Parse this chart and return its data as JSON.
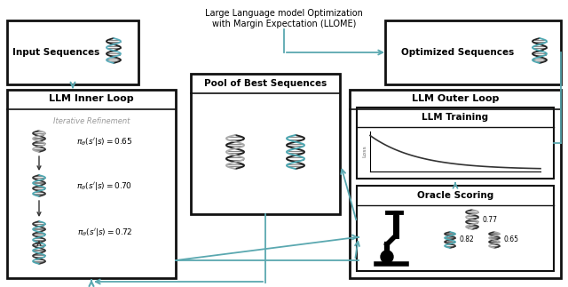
{
  "title_line1": "Large Language model Optimization",
  "title_line2": "with Margin Expectation (LLOME)",
  "bg_color": "#ffffff",
  "border_color": "#111111",
  "arrow_color": "#5aa8b0",
  "gray_text": "#999999",
  "eq1": "$\\pi_\\theta(s^{\\prime}|s) = 0.65$",
  "eq2": "$\\pi_\\theta(s^{\\prime}|s) = 0.70$",
  "eq3": "$\\pi_\\theta(s^{\\prime}|s) = 0.72$",
  "iterative_text": "Iterative Refinement",
  "input_label": "Input Sequences",
  "optimized_label": "Optimized Sequences",
  "inner_label": "LLM Inner Loop",
  "pool_label": "Pool of Best Sequences",
  "outer_label": "LLM Outer Loop",
  "training_label": "LLM Training",
  "oracle_label": "Oracle Scoring",
  "loss_label": "Loss",
  "score1": "0.77",
  "score2": "0.82",
  "score3": "0.65"
}
